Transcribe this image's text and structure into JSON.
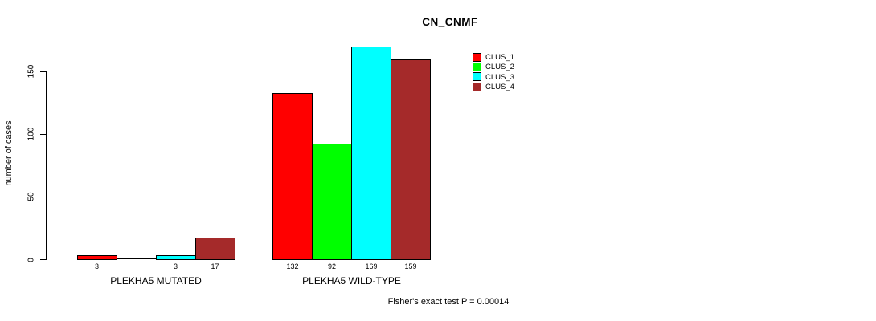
{
  "title": "CN_CNMF",
  "y_axis": {
    "label": "number of cases",
    "ticks": [
      0,
      50,
      100,
      150
    ]
  },
  "legend": {
    "entries": [
      {
        "label": "CLUS_1",
        "color": "#FF0000"
      },
      {
        "label": "CLUS_2",
        "color": "#00FF00"
      },
      {
        "label": "CLUS_3",
        "color": "#00FFFF"
      },
      {
        "label": "CLUS_4",
        "color": "#A52A2A"
      }
    ]
  },
  "footer": "Fisher's exact test P = 0.00014",
  "chart_data": {
    "type": "bar",
    "title": "CN_CNMF",
    "xlabel": "",
    "ylabel": "number of cases",
    "ylim": [
      0,
      169
    ],
    "axis_ticks": [
      0,
      50,
      100,
      150
    ],
    "grid": false,
    "legend_position": "top-right-inside",
    "categories": [
      "PLEKHA5 MUTATED",
      "PLEKHA5 WILD-TYPE"
    ],
    "series": [
      {
        "name": "CLUS_1",
        "color": "#FF0000",
        "values": [
          3,
          132
        ]
      },
      {
        "name": "CLUS_2",
        "color": "#00FF00",
        "values": [
          0,
          92
        ]
      },
      {
        "name": "CLUS_3",
        "color": "#00FFFF",
        "values": [
          3,
          169
        ]
      },
      {
        "name": "CLUS_4",
        "color": "#A52A2A",
        "values": [
          17,
          159
        ]
      }
    ],
    "bar_labels": [
      [
        "3",
        "",
        "3",
        "17"
      ],
      [
        "132",
        "92",
        "169",
        "159"
      ]
    ],
    "annotation": "Fisher's exact test P = 0.00014"
  }
}
